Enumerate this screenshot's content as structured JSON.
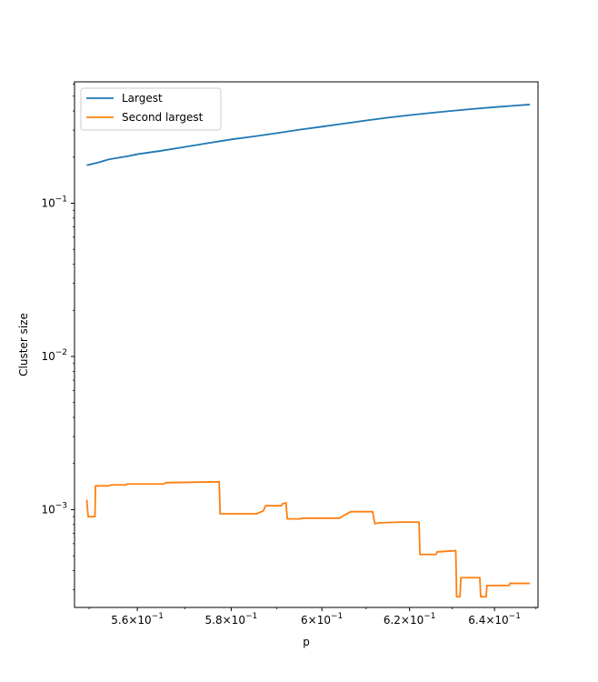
{
  "chart_data": {
    "type": "line",
    "xlabel": "p",
    "ylabel": "Cluster size",
    "xscale": "log",
    "yscale": "log",
    "xlim": [
      0.547,
      0.6505
    ],
    "ylim": [
      0.00023,
      0.62
    ],
    "grid": false,
    "legend_position": "top-left",
    "x_ticks": [
      {
        "value": 0.56,
        "mantissa": "5.6",
        "base": "10",
        "exp": "−1"
      },
      {
        "value": 0.58,
        "mantissa": "5.8",
        "base": "10",
        "exp": "−1"
      },
      {
        "value": 0.6,
        "mantissa": "6",
        "base": "10",
        "exp": "−1"
      },
      {
        "value": 0.62,
        "mantissa": "6.2",
        "base": "10",
        "exp": "−1"
      },
      {
        "value": 0.64,
        "mantissa": "6.4",
        "base": "10",
        "exp": "−1"
      }
    ],
    "y_ticks": [
      {
        "value": 0.1,
        "base": "10",
        "exp": "−1"
      },
      {
        "value": 0.01,
        "base": "10",
        "exp": "−2"
      },
      {
        "value": 0.001,
        "base": "10",
        "exp": "−3"
      }
    ],
    "series": [
      {
        "name": "Largest",
        "color": "#1f77b4",
        "x": [
          0.5495,
          0.5505,
          0.552,
          0.554,
          0.556,
          0.558,
          0.56,
          0.565,
          0.57,
          0.575,
          0.58,
          0.585,
          0.59,
          0.595,
          0.6,
          0.605,
          0.61,
          0.615,
          0.62,
          0.625,
          0.63,
          0.635,
          0.64,
          0.645,
          0.6485
        ],
        "y": [
          0.177,
          0.18,
          0.185,
          0.193,
          0.198,
          0.203,
          0.209,
          0.22,
          0.233,
          0.247,
          0.261,
          0.273,
          0.287,
          0.302,
          0.316,
          0.331,
          0.347,
          0.362,
          0.376,
          0.389,
          0.401,
          0.413,
          0.424,
          0.434,
          0.441
        ]
      },
      {
        "name": "Second largest",
        "color": "#ff7f0e",
        "x": [
          0.5495,
          0.5498,
          0.5512,
          0.5513,
          0.554,
          0.5545,
          0.5575,
          0.558,
          0.5655,
          0.566,
          0.5774,
          0.5776,
          0.5855,
          0.587,
          0.5875,
          0.591,
          0.5912,
          0.592,
          0.5923,
          0.5952,
          0.5955,
          0.604,
          0.6045,
          0.6065,
          0.6115,
          0.612,
          0.613,
          0.618,
          0.6222,
          0.6224,
          0.6262,
          0.6264,
          0.6308,
          0.631,
          0.6318,
          0.632,
          0.6365,
          0.6367,
          0.638,
          0.6382,
          0.6435,
          0.6437,
          0.6485
        ],
        "y": [
          0.00116,
          0.0009,
          0.0009,
          0.00143,
          0.00143,
          0.00145,
          0.00145,
          0.00147,
          0.00147,
          0.0015,
          0.00152,
          0.00094,
          0.00094,
          0.00098,
          0.00106,
          0.00106,
          0.00109,
          0.00111,
          0.00087,
          0.00087,
          0.00088,
          0.00088,
          0.0009,
          0.00097,
          0.00097,
          0.00081,
          0.00082,
          0.00083,
          0.00083,
          0.00051,
          0.00051,
          0.00053,
          0.00054,
          0.00027,
          0.00027,
          0.00036,
          0.00036,
          0.00027,
          0.00027,
          0.00032,
          0.00032,
          0.00033,
          0.00033
        ]
      }
    ]
  }
}
